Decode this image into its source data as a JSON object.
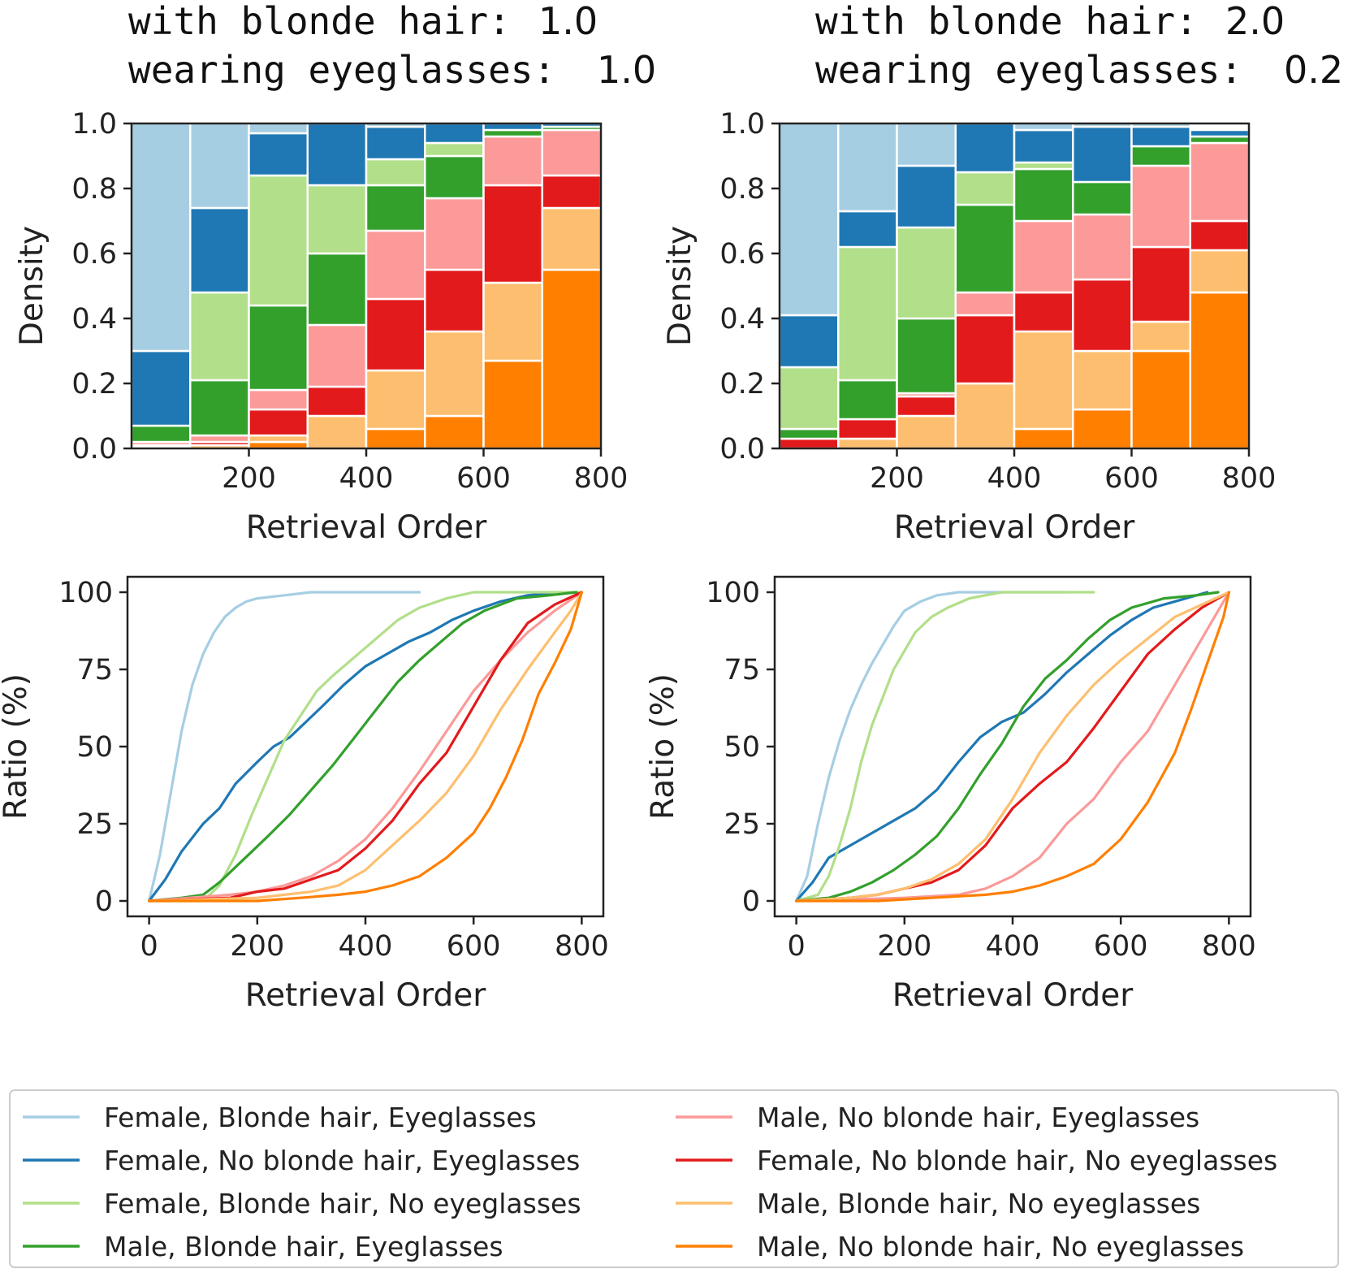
{
  "chart_data": [
    {
      "id": "density-left",
      "type": "bar",
      "stacked": true,
      "title_lines": [
        {
          "label": "with blonde hair:",
          "value": "1.0"
        },
        {
          "label": "wearing eyeglasses:",
          "value": "1.0"
        }
      ],
      "xlabel": "Retrieval Order",
      "ylabel": "Density",
      "xlim": [
        0,
        800
      ],
      "ylim": [
        0,
        1.0
      ],
      "xticks": [
        "200",
        "400",
        "600",
        "800"
      ],
      "yticks": [
        "0.0",
        "0.2",
        "0.4",
        "0.6",
        "0.8",
        "1.0"
      ],
      "bins": [
        [
          0,
          100
        ],
        [
          100,
          200
        ],
        [
          200,
          300
        ],
        [
          300,
          400
        ],
        [
          400,
          500
        ],
        [
          500,
          600
        ],
        [
          600,
          700
        ],
        [
          700,
          800
        ]
      ],
      "series": [
        {
          "name": "Male, No blonde hair, No eyeglasses",
          "values": [
            0.0,
            0.0,
            0.02,
            0.0,
            0.06,
            0.1,
            0.27,
            0.55
          ]
        },
        {
          "name": "Male, Blonde hair, No eyeglasses",
          "values": [
            0.005,
            0.01,
            0.02,
            0.1,
            0.18,
            0.26,
            0.24,
            0.19
          ]
        },
        {
          "name": "Female, No blonde hair, No eyeglasses",
          "values": [
            0.005,
            0.01,
            0.08,
            0.09,
            0.22,
            0.19,
            0.3,
            0.1
          ]
        },
        {
          "name": "Male, No blonde hair, Eyeglasses",
          "values": [
            0.01,
            0.02,
            0.06,
            0.19,
            0.21,
            0.22,
            0.15,
            0.14
          ]
        },
        {
          "name": "Male, Blonde hair, Eyeglasses",
          "values": [
            0.05,
            0.17,
            0.26,
            0.22,
            0.14,
            0.13,
            0.02,
            0.01
          ]
        },
        {
          "name": "Female, Blonde hair, No eyeglasses",
          "values": [
            0.0,
            0.27,
            0.4,
            0.21,
            0.08,
            0.04,
            0.0,
            0.0
          ]
        },
        {
          "name": "Female, No blonde hair, Eyeglasses",
          "values": [
            0.23,
            0.26,
            0.13,
            0.19,
            0.1,
            0.06,
            0.02,
            0.01
          ]
        },
        {
          "name": "Female, Blonde hair, Eyeglasses",
          "values": [
            0.7,
            0.26,
            0.03,
            0.0,
            0.01,
            0.0,
            0.0,
            0.0
          ]
        }
      ]
    },
    {
      "id": "density-right",
      "type": "bar",
      "stacked": true,
      "title_lines": [
        {
          "label": "with blonde hair:",
          "value": "2.0"
        },
        {
          "label": "wearing eyeglasses:",
          "value": "0.2"
        }
      ],
      "xlabel": "Retrieval Order",
      "ylabel": "Density",
      "xlim": [
        0,
        800
      ],
      "ylim": [
        0,
        1.0
      ],
      "xticks": [
        "200",
        "400",
        "600",
        "800"
      ],
      "yticks": [
        "0.0",
        "0.2",
        "0.4",
        "0.6",
        "0.8",
        "1.0"
      ],
      "bins": [
        [
          0,
          100
        ],
        [
          100,
          200
        ],
        [
          200,
          300
        ],
        [
          300,
          400
        ],
        [
          400,
          500
        ],
        [
          500,
          600
        ],
        [
          600,
          700
        ],
        [
          700,
          800
        ]
      ],
      "series": [
        {
          "name": "Male, No blonde hair, No eyeglasses",
          "values": [
            0.0,
            0.0,
            0.0,
            0.0,
            0.06,
            0.12,
            0.3,
            0.48
          ]
        },
        {
          "name": "Male, Blonde hair, No eyeglasses",
          "values": [
            0.0,
            0.03,
            0.1,
            0.2,
            0.3,
            0.18,
            0.09,
            0.13
          ]
        },
        {
          "name": "Female, No blonde hair, No eyeglasses",
          "values": [
            0.03,
            0.06,
            0.06,
            0.21,
            0.12,
            0.22,
            0.23,
            0.09
          ]
        },
        {
          "name": "Male, No blonde hair, Eyeglasses",
          "values": [
            0.0,
            0.0,
            0.01,
            0.07,
            0.22,
            0.2,
            0.25,
            0.24
          ]
        },
        {
          "name": "Male, Blonde hair, Eyeglasses",
          "values": [
            0.03,
            0.12,
            0.23,
            0.27,
            0.16,
            0.1,
            0.06,
            0.02
          ]
        },
        {
          "name": "Female, Blonde hair, No eyeglasses",
          "values": [
            0.19,
            0.41,
            0.28,
            0.1,
            0.02,
            0.0,
            0.0,
            0.0
          ]
        },
        {
          "name": "Female, No blonde hair, Eyeglasses",
          "values": [
            0.16,
            0.11,
            0.19,
            0.15,
            0.1,
            0.17,
            0.06,
            0.02
          ]
        },
        {
          "name": "Female, Blonde hair, Eyeglasses",
          "values": [
            0.59,
            0.27,
            0.13,
            0.0,
            0.02,
            0.01,
            0.01,
            0.0
          ]
        }
      ]
    },
    {
      "id": "ratio-left",
      "type": "line",
      "xlabel": "Retrieval Order",
      "ylabel": "Ratio (%)",
      "xlim": [
        -40,
        840
      ],
      "ylim": [
        -5,
        105
      ],
      "xticks": [
        "0",
        "200",
        "400",
        "600",
        "800"
      ],
      "yticks": [
        "0",
        "25",
        "50",
        "75",
        "100"
      ],
      "series": [
        {
          "name": "Female, Blonde hair, Eyeglasses",
          "x": [
            0,
            20,
            40,
            60,
            80,
            100,
            120,
            140,
            160,
            180,
            200,
            250,
            300,
            400,
            500
          ],
          "y": [
            0,
            15,
            35,
            55,
            70,
            80,
            87,
            92,
            95,
            97,
            98,
            99,
            100,
            100,
            100
          ]
        },
        {
          "name": "Female, No blonde hair, Eyeglasses",
          "x": [
            0,
            30,
            60,
            100,
            130,
            160,
            200,
            230,
            260,
            290,
            320,
            360,
            400,
            440,
            480,
            520,
            560,
            600,
            650,
            700,
            760
          ],
          "y": [
            0,
            7,
            16,
            25,
            30,
            38,
            45,
            50,
            53,
            58,
            63,
            70,
            76,
            80,
            84,
            87,
            91,
            94,
            97,
            99,
            100
          ]
        },
        {
          "name": "Female, Blonde hair, No eyeglasses",
          "x": [
            0,
            50,
            100,
            130,
            160,
            190,
            220,
            250,
            280,
            310,
            340,
            380,
            420,
            460,
            500,
            550,
            600,
            700,
            800
          ],
          "y": [
            0,
            0,
            0,
            5,
            15,
            28,
            40,
            52,
            60,
            68,
            73,
            79,
            85,
            91,
            95,
            98,
            100,
            100,
            100
          ]
        },
        {
          "name": "Male, Blonde hair, Eyeglasses",
          "x": [
            0,
            60,
            100,
            130,
            160,
            190,
            220,
            260,
            300,
            340,
            380,
            420,
            460,
            500,
            540,
            580,
            620,
            680,
            740,
            790
          ],
          "y": [
            0,
            1,
            2,
            6,
            11,
            16,
            21,
            28,
            36,
            44,
            53,
            62,
            71,
            78,
            84,
            90,
            94,
            98,
            99,
            100
          ]
        },
        {
          "name": "Male, No blonde hair, Eyeglasses",
          "x": [
            0,
            150,
            200,
            250,
            300,
            350,
            400,
            450,
            500,
            550,
            600,
            650,
            700,
            750,
            800
          ],
          "y": [
            0,
            2,
            3,
            5,
            8,
            13,
            20,
            30,
            42,
            55,
            68,
            78,
            87,
            94,
            100
          ]
        },
        {
          "name": "Female, No blonde hair, No eyeglasses",
          "x": [
            0,
            150,
            200,
            250,
            300,
            350,
            400,
            450,
            500,
            550,
            600,
            650,
            700,
            750,
            800
          ],
          "y": [
            0,
            1,
            3,
            4,
            7,
            10,
            17,
            26,
            38,
            48,
            63,
            78,
            90,
            96,
            100
          ]
        },
        {
          "name": "Male, Blonde hair, No eyeglasses",
          "x": [
            0,
            200,
            250,
            300,
            350,
            400,
            450,
            500,
            550,
            600,
            650,
            700,
            750,
            780,
            800
          ],
          "y": [
            0,
            1,
            2,
            3,
            5,
            10,
            18,
            26,
            35,
            47,
            62,
            75,
            87,
            94,
            100
          ]
        },
        {
          "name": "Male, No blonde hair, No eyeglasses",
          "x": [
            0,
            200,
            280,
            350,
            400,
            450,
            500,
            550,
            600,
            630,
            660,
            690,
            720,
            750,
            780,
            800
          ],
          "y": [
            0,
            0,
            1,
            2,
            3,
            5,
            8,
            14,
            22,
            30,
            40,
            52,
            67,
            77,
            88,
            100
          ]
        }
      ]
    },
    {
      "id": "ratio-right",
      "type": "line",
      "xlabel": "Retrieval Order",
      "ylabel": "Ratio (%)",
      "xlim": [
        -40,
        840
      ],
      "ylim": [
        -5,
        105
      ],
      "xticks": [
        "0",
        "200",
        "400",
        "600",
        "800"
      ],
      "yticks": [
        "0",
        "25",
        "50",
        "75",
        "100"
      ],
      "series": [
        {
          "name": "Female, Blonde hair, Eyeglasses",
          "x": [
            0,
            20,
            40,
            60,
            80,
            100,
            120,
            140,
            160,
            180,
            200,
            230,
            260,
            300,
            400,
            500
          ],
          "y": [
            0,
            8,
            25,
            40,
            52,
            62,
            70,
            77,
            83,
            89,
            94,
            97,
            99,
            100,
            100,
            100
          ]
        },
        {
          "name": "Female, No blonde hair, Eyeglasses",
          "x": [
            0,
            30,
            60,
            100,
            140,
            180,
            220,
            260,
            300,
            340,
            380,
            420,
            460,
            500,
            540,
            580,
            620,
            660,
            700,
            760
          ],
          "y": [
            0,
            6,
            14,
            18,
            22,
            26,
            30,
            36,
            45,
            53,
            58,
            61,
            67,
            74,
            80,
            86,
            91,
            95,
            97,
            100
          ]
        },
        {
          "name": "Female, Blonde hair, No eyeglasses",
          "x": [
            0,
            40,
            60,
            80,
            100,
            120,
            140,
            160,
            180,
            200,
            220,
            250,
            280,
            320,
            380,
            450,
            550
          ],
          "y": [
            0,
            2,
            8,
            18,
            30,
            45,
            57,
            66,
            75,
            81,
            87,
            92,
            95,
            98,
            100,
            100,
            100
          ]
        },
        {
          "name": "Male, Blonde hair, Eyeglasses",
          "x": [
            0,
            60,
            100,
            140,
            180,
            220,
            260,
            300,
            340,
            380,
            420,
            460,
            500,
            540,
            580,
            620,
            680,
            740,
            780
          ],
          "y": [
            0,
            1,
            3,
            6,
            10,
            15,
            21,
            30,
            41,
            51,
            63,
            72,
            78,
            85,
            91,
            95,
            98,
            99,
            100
          ]
        },
        {
          "name": "Male, No blonde hair, Eyeglasses",
          "x": [
            0,
            200,
            300,
            350,
            400,
            450,
            500,
            550,
            600,
            650,
            700,
            750,
            800
          ],
          "y": [
            0,
            1,
            2,
            4,
            8,
            14,
            25,
            33,
            45,
            55,
            70,
            85,
            100
          ]
        },
        {
          "name": "Female, No blonde hair, No eyeglasses",
          "x": [
            0,
            100,
            150,
            200,
            250,
            300,
            350,
            400,
            450,
            500,
            550,
            600,
            650,
            700,
            750,
            800
          ],
          "y": [
            0,
            1,
            2,
            4,
            6,
            10,
            18,
            30,
            38,
            45,
            56,
            68,
            80,
            88,
            95,
            100
          ]
        },
        {
          "name": "Male, Blonde hair, No eyeglasses",
          "x": [
            0,
            100,
            150,
            200,
            250,
            300,
            350,
            400,
            450,
            500,
            550,
            600,
            650,
            700,
            750,
            800
          ],
          "y": [
            0,
            1,
            2,
            4,
            7,
            12,
            20,
            33,
            48,
            60,
            70,
            78,
            85,
            92,
            96,
            100
          ]
        },
        {
          "name": "Male, No blonde hair, No eyeglasses",
          "x": [
            0,
            150,
            250,
            350,
            400,
            450,
            500,
            550,
            600,
            650,
            700,
            730,
            760,
            790,
            800
          ],
          "y": [
            0,
            0,
            1,
            2,
            3,
            5,
            8,
            12,
            20,
            32,
            48,
            62,
            77,
            92,
            100
          ]
        }
      ]
    }
  ],
  "legend": {
    "entries": [
      {
        "label": "Female, Blonde hair, Eyeglasses",
        "color": "#a6cee3"
      },
      {
        "label": "Female, No blonde hair, Eyeglasses",
        "color": "#1f78b4"
      },
      {
        "label": "Female, Blonde hair, No eyeglasses",
        "color": "#b2df8a"
      },
      {
        "label": "Male, Blonde hair, Eyeglasses",
        "color": "#33a02c"
      },
      {
        "label": "Male, No blonde hair, Eyeglasses",
        "color": "#fb9a99"
      },
      {
        "label": "Female, No blonde hair, No eyeglasses",
        "color": "#e31a1c"
      },
      {
        "label": "Male, Blonde hair, No eyeglasses",
        "color": "#fdbf6f"
      },
      {
        "label": "Male, No blonde hair, No eyeglasses",
        "color": "#ff7f00"
      }
    ]
  }
}
